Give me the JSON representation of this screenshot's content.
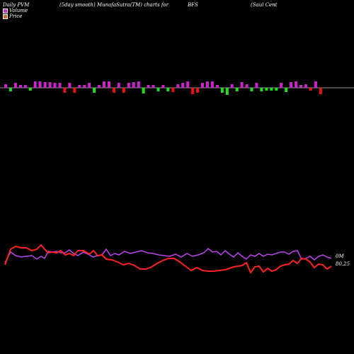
{
  "header": {
    "title": "Daily PVM",
    "subtitle": "(5day smooth) MunafaSutra(TM) charts for",
    "symbol": "BFS",
    "company": "(Saul Cent"
  },
  "legend": {
    "volume_label": "Volume",
    "price_label": "Price",
    "volume_color": "#cc33cc",
    "price_color": "#cc6633"
  },
  "colors": {
    "background": "#000000",
    "volume_up": "#cc22cc",
    "volume_down_red": "#ee1111",
    "volume_down_green": "#22dd22",
    "price_line": "#ff2222",
    "volume_line": "#bb44ee",
    "zero_line": "#999999",
    "text": "#ffffff"
  },
  "chart_data": {
    "type": "line",
    "bars": {
      "values": [
        5,
        -5,
        7,
        4,
        4,
        -4,
        9,
        9,
        8,
        8,
        7,
        7,
        -7,
        7,
        -7,
        4,
        4,
        7,
        -7,
        4,
        9,
        9,
        -7,
        7,
        -7,
        7,
        8,
        9,
        -8,
        4,
        4,
        -5,
        4,
        -5,
        -6,
        5,
        7,
        9,
        -9,
        -7,
        7,
        9,
        9,
        4,
        -7,
        -10,
        5,
        -5,
        8,
        5,
        -5,
        7,
        -5,
        -4,
        -4,
        -4,
        7,
        -6,
        8,
        9,
        4,
        5,
        -4,
        9,
        -9
      ],
      "colors": [
        "#cc22cc",
        "#22dd22",
        "#cc22cc",
        "#cc22cc",
        "#cc22cc",
        "#22dd22",
        "#cc22cc",
        "#cc22cc",
        "#cc22cc",
        "#cc22cc",
        "#cc22cc",
        "#cc22cc",
        "#ee1111",
        "#cc22cc",
        "#ee1111",
        "#cc22cc",
        "#cc22cc",
        "#cc22cc",
        "#22dd22",
        "#cc22cc",
        "#cc22cc",
        "#cc22cc",
        "#ee1111",
        "#cc22cc",
        "#ee1111",
        "#cc22cc",
        "#cc22cc",
        "#cc22cc",
        "#22dd22",
        "#cc22cc",
        "#cc22cc",
        "#22dd22",
        "#cc22cc",
        "#22dd22",
        "#ee1111",
        "#cc22cc",
        "#cc22cc",
        "#cc22cc",
        "#ee1111",
        "#ee1111",
        "#cc22cc",
        "#cc22cc",
        "#cc22cc",
        "#cc22cc",
        "#22dd22",
        "#22dd22",
        "#cc22cc",
        "#22dd22",
        "#cc22cc",
        "#cc22cc",
        "#22dd22",
        "#cc22cc",
        "#22dd22",
        "#22dd22",
        "#22dd22",
        "#22dd22",
        "#cc22cc",
        "#22dd22",
        "#cc22cc",
        "#cc22cc",
        "#cc22cc",
        "#cc22cc",
        "#ee1111",
        "#cc22cc",
        "#ee1111"
      ]
    },
    "price_series": {
      "x": [
        7,
        15,
        22,
        30,
        37,
        45,
        52,
        58,
        63,
        68,
        74,
        80,
        86,
        92,
        98,
        104,
        110,
        118,
        126,
        132,
        138,
        144,
        150,
        158,
        166,
        174,
        182,
        190,
        198,
        206,
        214,
        222,
        230,
        238,
        246,
        254,
        262,
        270,
        278,
        286,
        294,
        302,
        310,
        318,
        324,
        330,
        336,
        342,
        348,
        354,
        360,
        366,
        372,
        378,
        384,
        390,
        396,
        402,
        408,
        414,
        420,
        426,
        432,
        438,
        444,
        450,
        456,
        462,
        468
      ],
      "values": [
        374,
        352,
        348,
        350,
        350,
        354,
        352,
        346,
        352,
        357,
        356,
        357,
        354,
        360,
        358,
        361,
        354,
        354,
        359,
        354,
        361,
        360,
        366,
        367,
        370,
        374,
        372,
        375,
        380,
        380,
        377,
        372,
        368,
        365,
        365,
        370,
        376,
        382,
        378,
        382,
        383,
        383,
        382,
        381,
        379,
        377,
        376,
        375,
        371,
        385,
        377,
        376,
        384,
        379,
        383,
        381,
        376,
        374,
        373,
        368,
        372,
        365,
        366,
        370,
        378,
        373,
        374,
        380,
        376
      ]
    },
    "volume_series": {
      "x": [
        7,
        15,
        22,
        30,
        37,
        45,
        52,
        58,
        63,
        68,
        74,
        80,
        86,
        92,
        98,
        104,
        110,
        118,
        126,
        132,
        138,
        144,
        150,
        156,
        162,
        168,
        176,
        184,
        192,
        200,
        208,
        216,
        224,
        232,
        240,
        248,
        256,
        264,
        272,
        280,
        288,
        294,
        300,
        306,
        312,
        318,
        324,
        330,
        336,
        342,
        348,
        354,
        360,
        366,
        372,
        378,
        384,
        390,
        396,
        402,
        408,
        414,
        420,
        426,
        432,
        438,
        444,
        450,
        456,
        462,
        468
      ],
      "values": [
        371,
        356,
        361,
        363,
        362,
        361,
        366,
        362,
        365,
        355,
        356,
        355,
        357,
        357,
        353,
        358,
        361,
        356,
        360,
        363,
        361,
        360,
        352,
        361,
        358,
        360,
        355,
        358,
        356,
        354,
        357,
        358,
        360,
        361,
        362,
        359,
        363,
        358,
        362,
        360,
        357,
        351,
        356,
        355,
        360,
        354,
        359,
        363,
        357,
        362,
        366,
        360,
        362,
        358,
        362,
        359,
        360,
        358,
        356,
        356,
        359,
        355,
        354,
        366,
        365,
        362,
        367,
        362,
        360,
        363,
        365
      ]
    },
    "right_labels": {
      "volume": "0M",
      "price": "80.25"
    }
  }
}
